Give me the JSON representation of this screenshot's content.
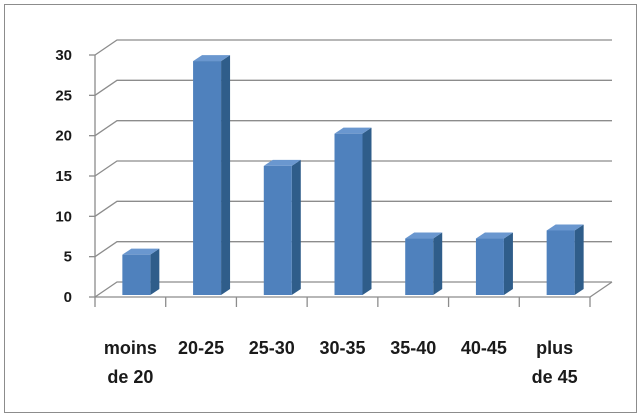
{
  "chart_data": {
    "type": "bar",
    "title": "",
    "xlabel": "",
    "ylabel": "",
    "categories": [
      [
        "moins",
        "de 20"
      ],
      [
        "20-25"
      ],
      [
        "25-30"
      ],
      [
        "30-35"
      ],
      [
        "35-40"
      ],
      [
        "40-45"
      ],
      [
        "plus",
        "de 45"
      ]
    ],
    "values": [
      5,
      29,
      16,
      20,
      7,
      7,
      8
    ],
    "ylim": [
      0,
      30
    ],
    "yticks": [
      "0",
      "5",
      "10",
      "15",
      "20",
      "25",
      "30"
    ],
    "grid": true,
    "legend": "none",
    "style": "3d-column",
    "colors": {
      "bar_front": "#4f81bd",
      "bar_side": "#2f5d8a",
      "bar_top": "#6a97cf",
      "gridline": "#8c8c8c",
      "axis": "#8c8c8c"
    }
  }
}
